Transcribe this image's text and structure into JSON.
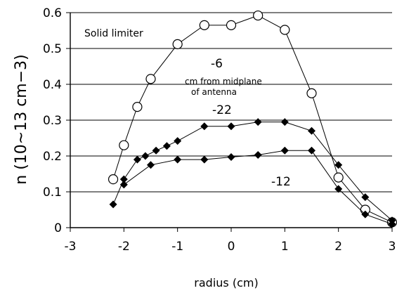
{
  "chart_data": {
    "type": "line",
    "title": "",
    "xlabel": "radius (cm)",
    "ylabel": "n (10~13 cm−3)",
    "xlim": [
      -3,
      3
    ],
    "ylim": [
      0,
      0.6
    ],
    "xticks": [
      "-3",
      "-2",
      "-1",
      "0",
      "1",
      "2",
      "3"
    ],
    "yticks": [
      "0",
      "0.1",
      "0.2",
      "0.3",
      "0.4",
      "0.5",
      "0.6"
    ],
    "grid": "horizontal",
    "series": [
      {
        "name": "-6",
        "marker": "open-circle",
        "x": [
          -2.2,
          -2.0,
          -1.75,
          -1.5,
          -1.0,
          -0.5,
          0.0,
          0.5,
          1.0,
          1.5,
          2.0,
          2.5,
          3.0
        ],
        "y": [
          0.135,
          0.23,
          0.337,
          0.415,
          0.512,
          0.565,
          0.565,
          0.592,
          0.552,
          0.375,
          0.14,
          0.05,
          0.015
        ]
      },
      {
        "name": "-22",
        "marker": "filled-diamond",
        "x": [
          -2.2,
          -2.0,
          -1.75,
          -1.6,
          -1.4,
          -1.2,
          -1.0,
          -0.5,
          0.0,
          0.5,
          1.0,
          1.5,
          2.0,
          2.5,
          3.0
        ],
        "y": [
          0.065,
          0.135,
          0.19,
          0.2,
          0.215,
          0.228,
          0.242,
          0.283,
          0.283,
          0.295,
          0.295,
          0.27,
          0.175,
          0.085,
          0.02
        ]
      },
      {
        "name": "-12",
        "marker": "filled-diamond",
        "x": [
          -2.0,
          -1.5,
          -1.0,
          -0.5,
          0.0,
          0.5,
          1.0,
          1.5,
          2.0,
          2.5,
          3.0
        ],
        "y": [
          0.12,
          0.175,
          0.19,
          0.19,
          0.197,
          0.203,
          0.215,
          0.215,
          0.108,
          0.037,
          0.01
        ]
      }
    ],
    "annotations": {
      "limiter": "Solid limiter",
      "label_minus6": "-6",
      "label_minus22": "-22",
      "label_minus12": "-12",
      "note_line1": "cm from midplane",
      "note_line2": "of antenna"
    }
  }
}
